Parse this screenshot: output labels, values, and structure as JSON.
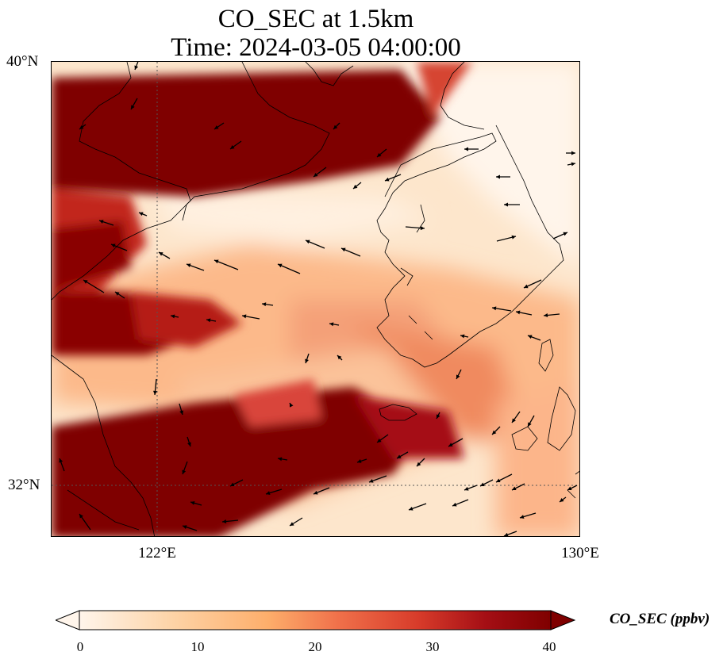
{
  "title": {
    "line1": "CO_SEC at 1.5km",
    "line2": "Time: 2024-03-05 04:00:00"
  },
  "axes": {
    "lat_labels": [
      "40°N",
      "32°N"
    ],
    "lon_labels": [
      "122°E",
      "130°E"
    ],
    "lon_range": [
      120,
      130
    ],
    "lat_range": [
      31,
      40
    ],
    "gridlines": "dotted at 122°E and 32°N"
  },
  "colorbar": {
    "label": "CO_SEC (ppbv)",
    "ticks": [
      "0",
      "10",
      "20",
      "30",
      "40"
    ],
    "range": [
      0,
      40
    ],
    "extend": "both",
    "colormap": [
      "#fff5eb",
      "#fdd3a6",
      "#fdae6b",
      "#f0704a",
      "#d73b2a",
      "#a50f15",
      "#7f0000"
    ]
  },
  "colors": {
    "saturated": "#7f0000",
    "background": "#fff5eb",
    "coastline": "#000000"
  }
}
